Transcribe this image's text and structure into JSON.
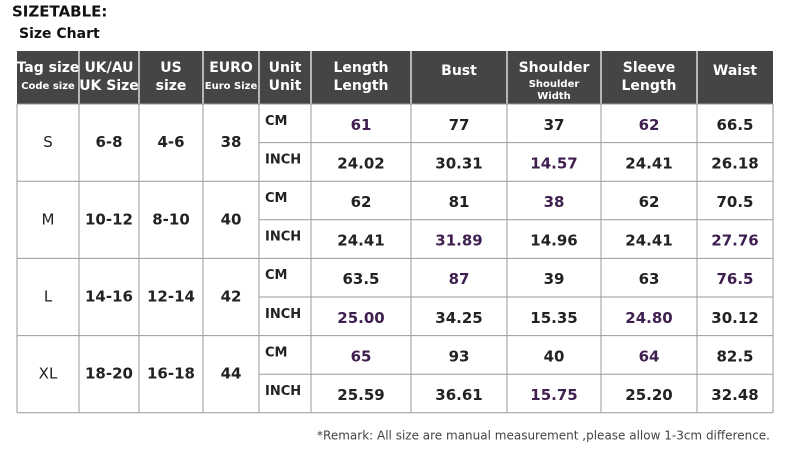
{
  "title": "SIZETABLE:",
  "subtitle": "Size Chart",
  "header": [
    [
      "Tag size",
      "Code size"
    ],
    [
      "UK/AU",
      "UK Size"
    ],
    [
      "US",
      "size"
    ],
    [
      "EURO",
      "Euro Size"
    ],
    [
      "Unit",
      "Unit"
    ],
    [
      "Length",
      "Length"
    ],
    [
      "Bust"
    ],
    [
      "Shoulder",
      "Shoulder",
      "Width"
    ],
    [
      "Sleeve",
      "Length"
    ],
    [
      "Waist"
    ]
  ],
  "rows": [
    {
      "size": "S",
      "uk": "6-8",
      "us": "4-6",
      "euro": "38",
      "units": [
        {
          "unit": "CM",
          "values": [
            "61",
            "77",
            "37",
            "62",
            "66.5"
          ]
        },
        {
          "unit": "INCH",
          "values": [
            "24.02",
            "30.31",
            "14.57",
            "24.41",
            "26.18"
          ]
        }
      ]
    },
    {
      "size": "M",
      "uk": "10-12",
      "us": "8-10",
      "euro": "40",
      "units": [
        {
          "unit": "CM",
          "values": [
            "62",
            "81",
            "38",
            "62",
            "70.5"
          ]
        },
        {
          "unit": "INCH",
          "values": [
            "24.41",
            "31.89",
            "14.96",
            "24.41",
            "27.76"
          ]
        }
      ]
    },
    {
      "size": "L",
      "uk": "14-16",
      "us": "12-14",
      "euro": "42",
      "units": [
        {
          "unit": "CM",
          "values": [
            "63.5",
            "87",
            "39",
            "63",
            "76.5"
          ]
        },
        {
          "unit": "INCH",
          "values": [
            "25.00",
            "34.25",
            "15.35",
            "24.80",
            "30.12"
          ]
        }
      ]
    },
    {
      "size": "XL",
      "uk": "18-20",
      "us": "16-18",
      "euro": "44",
      "units": [
        {
          "unit": "CM",
          "values": [
            "65",
            "93",
            "40",
            "64",
            "82.5"
          ]
        },
        {
          "unit": "INCH",
          "values": [
            "25.59",
            "36.61",
            "15.75",
            "25.20",
            "32.48"
          ]
        }
      ]
    }
  ],
  "remark": "*Remark: All size are manual measurement ,please allow 1-3cm difference."
}
